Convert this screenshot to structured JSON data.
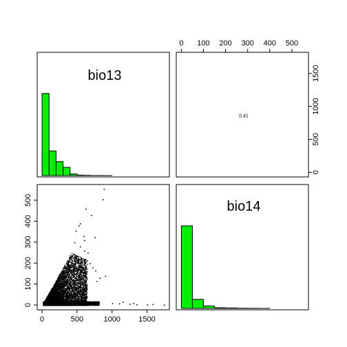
{
  "chart_data": {
    "type": "pairs",
    "variables": [
      "bio13",
      "bio14"
    ],
    "correlation": {
      "pair": [
        "bio13",
        "bio14"
      ],
      "label": "0.41",
      "value": 0.41
    },
    "histograms": [
      {
        "variable": "bio13",
        "range": [
          0,
          1750
        ],
        "bin_width": 100,
        "densities": [
          1.0,
          0.3,
          0.17,
          0.1,
          0.02,
          0.006,
          0.003,
          0.001,
          0.001,
          0.0005
        ]
      },
      {
        "variable": "bio14",
        "range": [
          0,
          575
        ],
        "bin_width": 50,
        "densities": [
          1.0,
          0.11,
          0.03,
          0.008,
          0.006,
          0.003,
          0.002,
          0.001
        ]
      }
    ],
    "axes": {
      "bio13": {
        "ticks": [
          0,
          500,
          1000,
          1500
        ],
        "tick_labels": [
          "0",
          "500",
          "1000",
          "1500"
        ],
        "range": [
          -70,
          1820
        ]
      },
      "bio14": {
        "ticks": [
          0,
          100,
          200,
          300,
          400,
          500
        ],
        "tick_labels": [
          "0",
          "100",
          "200",
          "300",
          "400",
          "500"
        ],
        "range": [
          -23,
          575
        ]
      }
    },
    "scatter": {
      "x": "bio13",
      "y": "bio14",
      "sampled_points": [
        [
          880,
          555
        ],
        [
          865,
          505
        ],
        [
          620,
          460
        ],
        [
          700,
          430
        ],
        [
          540,
          390
        ],
        [
          520,
          380
        ],
        [
          750,
          325
        ],
        [
          590,
          330
        ],
        [
          600,
          310
        ],
        [
          480,
          355
        ],
        [
          540,
          280
        ],
        [
          600,
          260
        ],
        [
          460,
          300
        ],
        [
          650,
          250
        ],
        [
          680,
          200
        ],
        [
          720,
          180
        ],
        [
          760,
          165
        ],
        [
          900,
          140
        ],
        [
          820,
          130
        ],
        [
          780,
          115
        ],
        [
          1000,
          10
        ],
        [
          1100,
          8
        ],
        [
          1250,
          6
        ],
        [
          1350,
          4
        ],
        [
          1500,
          3
        ],
        [
          1740,
          2
        ],
        [
          1580,
          5
        ],
        [
          1300,
          10
        ],
        [
          1150,
          15
        ]
      ]
    },
    "grid": false
  }
}
